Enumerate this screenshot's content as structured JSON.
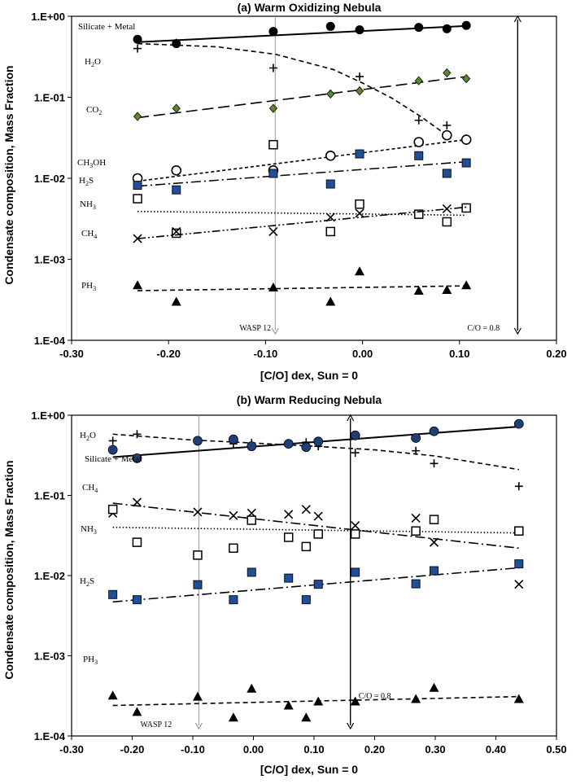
{
  "chart_data": [
    {
      "type": "scatter",
      "title": "(a) Warm Oxidizing Nebula",
      "xlabel": "[C/O] dex, Sun = 0",
      "ylabel": "Condensate composition, Mass Fraction",
      "xlim": [
        -0.3,
        0.2
      ],
      "ylim": [
        0.0001,
        1.0
      ],
      "yscale": "log",
      "xticks": [
        "-0.30",
        "-0.20",
        "-0.10",
        "0.00",
        "0.10",
        "0.20"
      ],
      "yticks": [
        "1.E-04",
        "1.E-03",
        "1.E-02",
        "1.E-01",
        "1.E+00"
      ],
      "annotations": [
        {
          "key": "wasp",
          "text": "WASP 12",
          "x": -0.09
        },
        {
          "key": "co",
          "text": "C/O = 0.8",
          "x": 0.16
        }
      ],
      "series": [
        {
          "name": "Silicate + Metal",
          "label_html": "Silicate + Metal",
          "marker": "circle-filled",
          "x": [
            -0.232,
            -0.192,
            -0.092,
            -0.033,
            -0.003,
            0.058,
            0.087,
            0.107
          ],
          "y": [
            0.52,
            0.46,
            0.65,
            0.75,
            0.68,
            0.73,
            0.7,
            0.77
          ],
          "fit": {
            "style": "solid",
            "x": [
              -0.232,
              0.107
            ],
            "y": [
              0.48,
              0.76
            ]
          }
        },
        {
          "name": "H2O",
          "label_parts": [
            "H",
            "2",
            "O"
          ],
          "marker": "plus",
          "x": [
            -0.232,
            -0.192,
            -0.092,
            -0.003,
            0.058,
            0.087
          ],
          "y": [
            0.4,
            0.47,
            0.23,
            0.18,
            0.052,
            0.045
          ],
          "fit": {
            "style": "dashed",
            "x": [
              -0.232,
              -0.15,
              -0.09,
              -0.03,
              0.0,
              0.03,
              0.06,
              0.087
            ],
            "y": [
              0.46,
              0.42,
              0.34,
              0.22,
              0.15,
              0.098,
              0.058,
              0.034
            ]
          }
        },
        {
          "name": "CO2",
          "label_parts": [
            "CO",
            "2",
            ""
          ],
          "marker": "diamond-green",
          "x": [
            -0.232,
            -0.192,
            -0.092,
            -0.033,
            -0.003,
            0.058,
            0.087,
            0.107
          ],
          "y": [
            0.058,
            0.073,
            0.073,
            0.11,
            0.12,
            0.16,
            0.2,
            0.17
          ],
          "fit": {
            "style": "longdash",
            "x": [
              -0.232,
              0.107
            ],
            "y": [
              0.056,
              0.18
            ]
          }
        },
        {
          "name": "CH3OH",
          "label_parts": [
            "CH",
            "3",
            "OH"
          ],
          "marker": "circle-open",
          "x": [
            -0.232,
            -0.192,
            -0.092,
            -0.033,
            0.058,
            0.087,
            0.107
          ],
          "y": [
            0.01,
            0.0125,
            0.0125,
            0.019,
            0.028,
            0.034,
            0.03
          ],
          "fit": {
            "style": "shortdash",
            "x": [
              -0.232,
              0.107
            ],
            "y": [
              0.0092,
              0.03
            ]
          }
        },
        {
          "name": "H2S",
          "label_parts": [
            "H",
            "2",
            "S"
          ],
          "marker": "square-filled",
          "x": [
            -0.232,
            -0.192,
            -0.092,
            -0.033,
            -0.003,
            0.058,
            0.087,
            0.107
          ],
          "y": [
            0.0082,
            0.0072,
            0.0115,
            0.0085,
            0.02,
            0.019,
            0.0115,
            0.0155
          ],
          "fit": {
            "style": "dashdot",
            "x": [
              -0.232,
              0.107
            ],
            "y": [
              0.008,
              0.016
            ]
          }
        },
        {
          "name": "NH3",
          "label_parts": [
            "NH",
            "3",
            ""
          ],
          "marker": "square-open",
          "x": [
            -0.232,
            -0.192,
            -0.092,
            -0.033,
            -0.003,
            0.058,
            0.087,
            0.107
          ],
          "y": [
            0.0056,
            0.0021,
            0.026,
            0.0022,
            0.0048,
            0.0036,
            0.0029,
            0.0043
          ],
          "fit": {
            "style": "dotted",
            "x": [
              -0.232,
              0.107
            ],
            "y": [
              0.0039,
              0.0035
            ]
          }
        },
        {
          "name": "CH4",
          "label_parts": [
            "CH",
            "4",
            ""
          ],
          "marker": "cross",
          "x": [
            -0.232,
            -0.192,
            -0.092,
            -0.033,
            -0.003,
            0.087
          ],
          "y": [
            0.0018,
            0.0022,
            0.0022,
            0.0033,
            0.0037,
            0.0042
          ],
          "fit": {
            "style": "dashdotdot",
            "x": [
              -0.232,
              0.107
            ],
            "y": [
              0.0018,
              0.0044
            ]
          }
        },
        {
          "name": "PH3",
          "label_parts": [
            "PH",
            "3",
            ""
          ],
          "marker": "triangle",
          "x": [
            -0.232,
            -0.192,
            -0.092,
            -0.033,
            -0.003,
            0.058,
            0.087,
            0.107
          ],
          "y": [
            0.00048,
            0.0003,
            0.00045,
            0.0003,
            0.00071,
            0.00041,
            0.00042,
            0.00048
          ],
          "fit": {
            "style": "dashed",
            "x": [
              -0.232,
              0.107
            ],
            "y": [
              0.00041,
              0.00047
            ]
          }
        }
      ]
    },
    {
      "type": "scatter",
      "title": "(b) Warm Reducing Nebula",
      "xlabel": "[C/O] dex, Sun = 0",
      "ylabel": "Condensate composition, Mass Fraction",
      "xlim": [
        -0.3,
        0.5
      ],
      "ylim": [
        0.0001,
        1.0
      ],
      "yscale": "log",
      "xticks": [
        "-0.30",
        "-0.20",
        "-0.10",
        "0.00",
        "0.10",
        "0.20",
        "0.30",
        "0.40",
        "0.50"
      ],
      "yticks": [
        "1.E-04",
        "1.E-03",
        "1.E-02",
        "1.E-01",
        "1.E+00"
      ],
      "annotations": [
        {
          "key": "wasp",
          "text": "WASP 12",
          "x": -0.09
        },
        {
          "key": "co",
          "text": "C/O = 0.8",
          "x": 0.16
        }
      ],
      "series": [
        {
          "name": "H2O",
          "label_parts": [
            "H",
            "2",
            "O"
          ],
          "marker": "plus",
          "x": [
            -0.232,
            -0.192,
            -0.092,
            -0.033,
            -0.003,
            0.058,
            0.087,
            0.107,
            0.168,
            0.268,
            0.298,
            0.438
          ],
          "y": [
            0.48,
            0.58,
            0.47,
            0.44,
            0.45,
            0.44,
            0.46,
            0.41,
            0.34,
            0.36,
            0.25,
            0.13
          ],
          "fit": {
            "style": "dashed",
            "x": [
              -0.232,
              -0.1,
              0.0,
              0.1,
              0.2,
              0.3,
              0.438
            ],
            "y": [
              0.58,
              0.49,
              0.45,
              0.41,
              0.37,
              0.31,
              0.21
            ]
          }
        },
        {
          "name": "Silicate + Metal",
          "label_html": "Silicate + Metal",
          "marker": "circle-filled-blue",
          "x": [
            -0.232,
            -0.192,
            -0.092,
            -0.033,
            -0.003,
            0.058,
            0.087,
            0.107,
            0.168,
            0.268,
            0.298,
            0.438
          ],
          "y": [
            0.37,
            0.29,
            0.48,
            0.5,
            0.41,
            0.44,
            0.4,
            0.47,
            0.56,
            0.52,
            0.63,
            0.78
          ],
          "fit": {
            "style": "solid",
            "x": [
              -0.232,
              0.438
            ],
            "y": [
              0.3,
              0.72
            ]
          }
        },
        {
          "name": "CH4",
          "label_parts": [
            "CH",
            "4",
            ""
          ],
          "marker": "cross",
          "x": [
            -0.232,
            -0.192,
            -0.092,
            -0.033,
            -0.003,
            0.058,
            0.087,
            0.107,
            0.168,
            0.268,
            0.298,
            0.438
          ],
          "y": [
            0.06,
            0.082,
            0.062,
            0.056,
            0.06,
            0.058,
            0.067,
            0.055,
            0.042,
            0.052,
            0.026,
            0.0078
          ],
          "fit": {
            "style": "dashdot",
            "x": [
              -0.232,
              0.438
            ],
            "y": [
              0.08,
              0.022
            ]
          }
        },
        {
          "name": "NH3",
          "label_parts": [
            "NH",
            "3",
            ""
          ],
          "marker": "square-open",
          "x": [
            -0.232,
            -0.192,
            -0.092,
            -0.033,
            -0.003,
            0.058,
            0.087,
            0.107,
            0.168,
            0.268,
            0.298,
            0.438
          ],
          "y": [
            0.067,
            0.026,
            0.018,
            0.022,
            0.049,
            0.03,
            0.023,
            0.033,
            0.033,
            0.036,
            0.05,
            0.036
          ],
          "fit": {
            "style": "dotted",
            "x": [
              -0.232,
              0.438
            ],
            "y": [
              0.04,
              0.034
            ]
          }
        },
        {
          "name": "H2S",
          "label_parts": [
            "H",
            "2",
            "S"
          ],
          "marker": "square-filled",
          "x": [
            -0.232,
            -0.192,
            -0.092,
            -0.033,
            -0.003,
            0.058,
            0.087,
            0.107,
            0.168,
            0.268,
            0.298,
            0.438
          ],
          "y": [
            0.0058,
            0.005,
            0.0077,
            0.005,
            0.011,
            0.0093,
            0.005,
            0.0078,
            0.011,
            0.0079,
            0.0115,
            0.014
          ],
          "fit": {
            "style": "dashdot",
            "x": [
              -0.232,
              0.438
            ],
            "y": [
              0.0047,
              0.0125
            ]
          }
        },
        {
          "name": "PH3",
          "label_parts": [
            "PH",
            "3",
            ""
          ],
          "marker": "triangle",
          "x": [
            -0.232,
            -0.192,
            -0.092,
            -0.033,
            -0.003,
            0.058,
            0.087,
            0.107,
            0.168,
            0.268,
            0.298,
            0.438
          ],
          "y": [
            0.00032,
            0.0002,
            0.00031,
            0.00017,
            0.00039,
            0.00024,
            0.00017,
            0.00027,
            0.00027,
            0.00029,
            0.0004,
            0.00029
          ],
          "fit": {
            "style": "dashed",
            "x": [
              -0.232,
              0.438
            ],
            "y": [
              0.00024,
              0.00031
            ]
          }
        }
      ]
    }
  ]
}
